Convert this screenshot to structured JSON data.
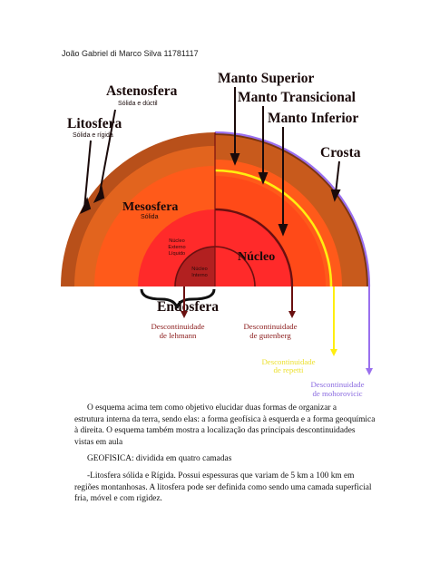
{
  "document": {
    "author": "João Gabriel di Marco Silva 11781117",
    "paragraph1": [
      "O esquema acima tem como objetivo elucidar duas formas de organizar a",
      "estrutura interna da terra, sendo elas: a forma geofísica à esquerda e a forma geoquímica",
      "à direita. O esquema também mostra a localização das principais descontinuidades",
      "vistas em aula"
    ],
    "paragraph2": "GEOFISICA: dividida em quatro camadas",
    "paragraph3": [
      "-Litosfera sólida e Rígida. Possui espessuras que variam de 5 km a 100 km em",
      "regiões montanhosas. A litosfera pode ser definida como sendo uma camada superficial",
      "fria, móvel e com rigidez."
    ]
  },
  "diagram": {
    "labels": {
      "astenosfera": "Astenosfera",
      "astenosfera_sub": "Sólida e dúctil",
      "litosfera": "Litosfera",
      "litosfera_sub": "Sólida e rígida",
      "manto_superior": "Manto Superior",
      "manto_transicional": "Manto Transicional",
      "manto_inferior": "Manto Inferior",
      "crosta": "Crosta",
      "mesosfera": "Mesosfera",
      "mesosfera_sub": "Sólida",
      "nucleo": "Núcleo",
      "nucleo_externo": [
        "Núcleo",
        "Externo",
        "Líquido"
      ],
      "nucleo_interno": [
        "Núcleo",
        "Interno"
      ],
      "endosfera": "Endosfera",
      "lehmann": [
        "Descontinuidade",
        "de lehmann"
      ],
      "gutenberg": [
        "Descontinuidade",
        "de gutenberg"
      ],
      "repetti": [
        "Descontinuidade",
        "de repetti"
      ],
      "mohorovicic": [
        "Descontinuidade",
        "de mohorovicic"
      ]
    },
    "colors": {
      "crust": "#7a3510",
      "lithosphere": "#b8501a",
      "asthenosphere": "#e2641e",
      "mesosphere": "#ff5a1a",
      "outer_core": "#ff2a2a",
      "inner_core": "#b22020",
      "dark_red": "#6a1010",
      "yellow": "#ffee10",
      "violet": "#9a70ee",
      "arrow": "#1a0a0a"
    }
  }
}
